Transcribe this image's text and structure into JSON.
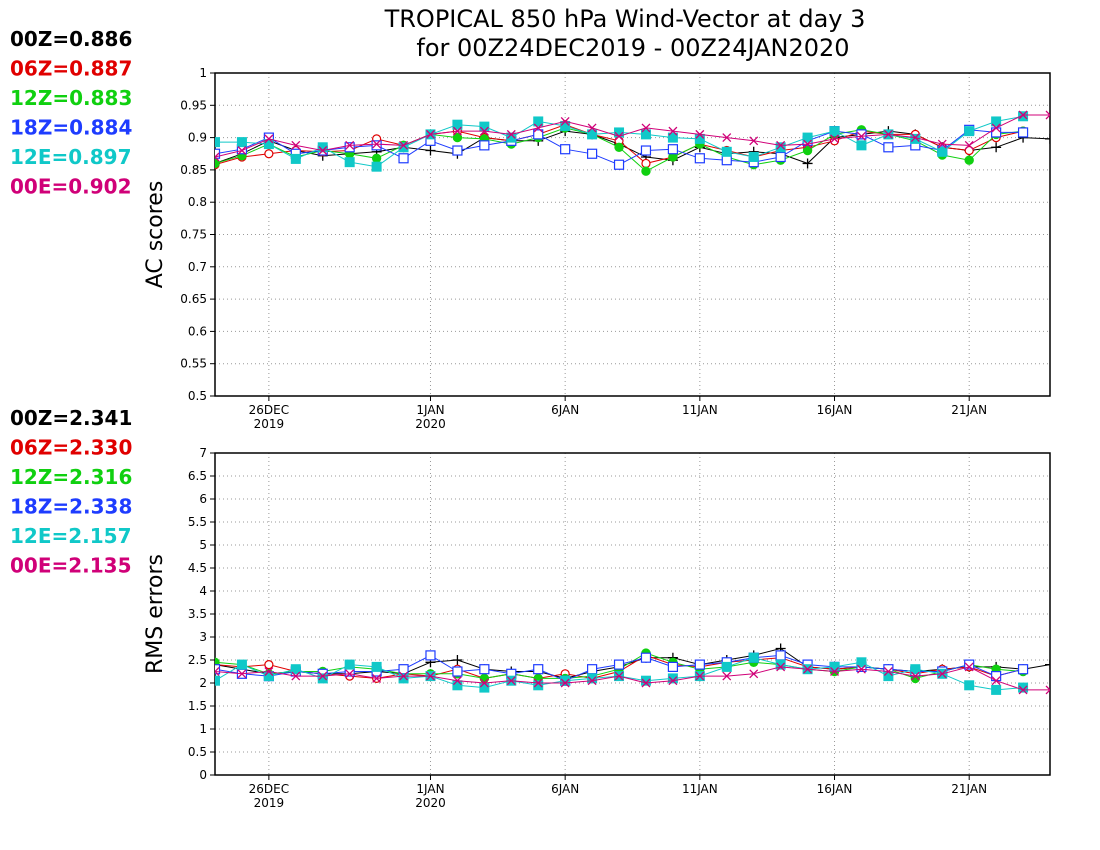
{
  "title_line1": "TROPICAL 850 hPa Wind-Vector at day 3",
  "title_line2": "for 00Z24DEC2019 - 00Z24JAN2020",
  "colors": {
    "00Z": "#000000",
    "06Z": "#e00000",
    "12Z": "#10d010",
    "18Z": "#1e3cff",
    "12E": "#10c8c8",
    "00E": "#d00078"
  },
  "x_ticks": [
    {
      "day": 2,
      "label": "26DEC",
      "sub": "2019"
    },
    {
      "day": 8,
      "label": "1JAN",
      "sub": "2020"
    },
    {
      "day": 13,
      "label": "6JAN",
      "sub": ""
    },
    {
      "day": 18,
      "label": "11JAN",
      "sub": ""
    },
    {
      "day": 23,
      "label": "16JAN",
      "sub": ""
    },
    {
      "day": 28,
      "label": "21JAN",
      "sub": ""
    }
  ],
  "chart_data": [
    {
      "type": "line",
      "id": "ac",
      "ylabel": "AC scores",
      "xlim": [
        0,
        31
      ],
      "ylim": [
        0.5,
        1.0
      ],
      "yticks": [
        "0.5",
        "0.55",
        "0.6",
        "0.65",
        "0.7",
        "0.75",
        "0.8",
        "0.85",
        "0.9",
        "0.95",
        "1"
      ],
      "grid": true,
      "legend": [
        {
          "key": "00Z",
          "text": "00Z=0.886"
        },
        {
          "key": "06Z",
          "text": "06Z=0.887"
        },
        {
          "key": "12Z",
          "text": "12Z=0.883"
        },
        {
          "key": "18Z",
          "text": "18Z=0.884"
        },
        {
          "key": "12E",
          "text": "12E=0.897"
        },
        {
          "key": "00E",
          "text": "00E=0.902"
        }
      ],
      "series": [
        {
          "key": "00Z",
          "marker": "plus",
          "x": [
            0,
            1,
            2,
            3,
            4,
            5,
            6,
            7,
            8,
            9,
            10,
            11,
            12,
            13,
            14,
            15,
            16,
            17,
            18,
            19,
            20,
            21,
            22,
            23,
            24,
            25,
            26,
            27,
            28,
            29,
            30,
            31
          ],
          "values": [
            0.86,
            0.875,
            0.895,
            0.88,
            0.872,
            0.875,
            0.878,
            0.885,
            0.88,
            0.875,
            0.9,
            0.895,
            0.895,
            0.91,
            0.905,
            0.89,
            0.87,
            0.865,
            0.885,
            0.875,
            0.878,
            0.875,
            0.86,
            0.9,
            0.905,
            0.91,
            0.905,
            0.885,
            0.88,
            0.885,
            0.9,
            0.898
          ]
        },
        {
          "key": "06Z",
          "marker": "circle",
          "x": [
            0,
            1,
            2,
            3,
            4,
            5,
            6,
            7,
            8,
            9,
            10,
            11,
            12,
            13,
            14,
            15,
            16,
            17,
            18,
            19,
            20,
            21,
            22,
            23,
            24,
            25,
            26,
            27,
            28,
            29,
            30
          ],
          "values": [
            0.858,
            0.87,
            0.875,
            0.88,
            0.878,
            0.88,
            0.898,
            0.888,
            0.905,
            0.91,
            0.9,
            0.895,
            0.905,
            0.92,
            0.905,
            0.895,
            0.86,
            0.87,
            0.89,
            0.88,
            0.87,
            0.88,
            0.885,
            0.895,
            0.91,
            0.905,
            0.905,
            0.885,
            0.88,
            0.9,
            0.91
          ]
        },
        {
          "key": "12Z",
          "marker": "filled-circle",
          "x": [
            0,
            1,
            2,
            3,
            4,
            5,
            6,
            7,
            8,
            9,
            10,
            11,
            12,
            13,
            14,
            15,
            16,
            17,
            18,
            19,
            20,
            21,
            22,
            23,
            24,
            25,
            26,
            27,
            28,
            29,
            30
          ],
          "values": [
            0.86,
            0.872,
            0.89,
            0.87,
            0.88,
            0.875,
            0.868,
            0.888,
            0.905,
            0.9,
            0.898,
            0.89,
            0.9,
            0.915,
            0.905,
            0.885,
            0.848,
            0.87,
            0.89,
            0.87,
            0.858,
            0.865,
            0.88,
            0.905,
            0.912,
            0.905,
            0.895,
            0.873,
            0.865,
            0.905,
            0.91
          ]
        },
        {
          "key": "18Z",
          "marker": "open-square",
          "x": [
            0,
            1,
            2,
            3,
            4,
            5,
            6,
            7,
            8,
            9,
            10,
            11,
            12,
            13,
            14,
            15,
            16,
            17,
            18,
            19,
            20,
            21,
            22,
            23,
            24,
            25,
            26,
            27,
            28,
            29,
            30
          ],
          "values": [
            0.875,
            0.882,
            0.9,
            0.875,
            0.88,
            0.885,
            0.888,
            0.868,
            0.895,
            0.88,
            0.888,
            0.895,
            0.905,
            0.882,
            0.875,
            0.858,
            0.88,
            0.882,
            0.868,
            0.865,
            0.862,
            0.87,
            0.895,
            0.91,
            0.905,
            0.885,
            0.888,
            0.88,
            0.912,
            0.908,
            0.908
          ]
        },
        {
          "key": "12E",
          "marker": "filled-square",
          "x": [
            0,
            1,
            2,
            3,
            4,
            5,
            6,
            7,
            8,
            9,
            10,
            11,
            12,
            13,
            14,
            15,
            16,
            17,
            18,
            19,
            20,
            21,
            22,
            23,
            24,
            25,
            26,
            27,
            28,
            29,
            30
          ],
          "values": [
            0.893,
            0.893,
            0.89,
            0.867,
            0.885,
            0.862,
            0.855,
            0.885,
            0.905,
            0.92,
            0.917,
            0.9,
            0.925,
            0.918,
            0.905,
            0.908,
            0.905,
            0.9,
            0.898,
            0.878,
            0.87,
            0.885,
            0.9,
            0.91,
            0.888,
            0.905,
            0.898,
            0.878,
            0.91,
            0.925,
            0.933
          ]
        },
        {
          "key": "00E",
          "marker": "x",
          "x": [
            0,
            1,
            2,
            3,
            4,
            5,
            6,
            7,
            8,
            9,
            10,
            11,
            12,
            13,
            14,
            15,
            16,
            17,
            18,
            19,
            20,
            21,
            22,
            23,
            24,
            25,
            26,
            27,
            28,
            29,
            30,
            31
          ],
          "values": [
            0.87,
            0.88,
            0.898,
            0.888,
            0.88,
            0.888,
            0.89,
            0.888,
            0.905,
            0.91,
            0.91,
            0.905,
            0.915,
            0.925,
            0.915,
            0.902,
            0.915,
            0.91,
            0.905,
            0.9,
            0.895,
            0.888,
            0.89,
            0.898,
            0.902,
            0.905,
            0.9,
            0.89,
            0.888,
            0.915,
            0.935,
            0.935
          ]
        }
      ]
    },
    {
      "type": "line",
      "id": "rms",
      "ylabel": "RMS errors",
      "xlim": [
        0,
        31
      ],
      "ylim": [
        0,
        7
      ],
      "yticks": [
        "0",
        "0.5",
        "1",
        "1.5",
        "2",
        "2.5",
        "3",
        "3.5",
        "4",
        "4.5",
        "5",
        "5.5",
        "6",
        "6.5",
        "7"
      ],
      "grid": true,
      "legend": [
        {
          "key": "00Z",
          "text": "00Z=2.341"
        },
        {
          "key": "06Z",
          "text": "06Z=2.330"
        },
        {
          "key": "12Z",
          "text": "12Z=2.316"
        },
        {
          "key": "18Z",
          "text": "18Z=2.338"
        },
        {
          "key": "12E",
          "text": "12E=2.157"
        },
        {
          "key": "00E",
          "text": "00E=2.135"
        }
      ],
      "series": [
        {
          "key": "00Z",
          "marker": "plus",
          "x": [
            0,
            1,
            2,
            3,
            4,
            5,
            6,
            7,
            8,
            9,
            10,
            11,
            12,
            13,
            14,
            15,
            16,
            17,
            18,
            19,
            20,
            21,
            22,
            23,
            24,
            25,
            26,
            27,
            28,
            29,
            30,
            31
          ],
          "values": [
            2.4,
            2.3,
            2.2,
            2.25,
            2.2,
            2.2,
            2.25,
            2.2,
            2.45,
            2.5,
            2.3,
            2.25,
            2.25,
            2.1,
            2.25,
            2.35,
            2.55,
            2.55,
            2.4,
            2.5,
            2.6,
            2.75,
            2.35,
            2.3,
            2.35,
            2.3,
            2.25,
            2.3,
            2.35,
            2.35,
            2.3,
            2.4
          ]
        },
        {
          "key": "06Z",
          "marker": "circle",
          "x": [
            0,
            1,
            2,
            3,
            4,
            5,
            6,
            7,
            8,
            9,
            10,
            11,
            12,
            13,
            14,
            15,
            16,
            17,
            18,
            19,
            20,
            21,
            22,
            23,
            24,
            25,
            26,
            27,
            28,
            29,
            30
          ],
          "values": [
            2.4,
            2.35,
            2.4,
            2.25,
            2.2,
            2.15,
            2.1,
            2.2,
            2.15,
            2.3,
            2.1,
            2.2,
            2.1,
            2.2,
            2.1,
            2.25,
            2.6,
            2.4,
            2.35,
            2.45,
            2.5,
            2.55,
            2.35,
            2.3,
            2.35,
            2.3,
            2.2,
            2.3,
            2.35,
            2.15,
            2.3
          ]
        },
        {
          "key": "12Z",
          "marker": "filled-circle",
          "x": [
            0,
            1,
            2,
            3,
            4,
            5,
            6,
            7,
            8,
            9,
            10,
            11,
            12,
            13,
            14,
            15,
            16,
            17,
            18,
            19,
            20,
            21,
            22,
            23,
            24,
            25,
            26,
            27,
            28,
            29,
            30
          ],
          "values": [
            2.45,
            2.4,
            2.2,
            2.25,
            2.25,
            2.35,
            2.3,
            2.2,
            2.2,
            2.2,
            2.1,
            2.2,
            2.1,
            2.1,
            2.15,
            2.3,
            2.65,
            2.45,
            2.3,
            2.35,
            2.45,
            2.4,
            2.3,
            2.25,
            2.35,
            2.3,
            2.1,
            2.25,
            2.4,
            2.3,
            2.25
          ]
        },
        {
          "key": "18Z",
          "marker": "open-square",
          "x": [
            0,
            1,
            2,
            3,
            4,
            5,
            6,
            7,
            8,
            9,
            10,
            11,
            12,
            13,
            14,
            15,
            16,
            17,
            18,
            19,
            20,
            21,
            22,
            23,
            24,
            25,
            26,
            27,
            28,
            29,
            30
          ],
          "values": [
            2.3,
            2.2,
            2.15,
            2.25,
            2.2,
            2.25,
            2.25,
            2.3,
            2.6,
            2.25,
            2.3,
            2.2,
            2.3,
            2.05,
            2.3,
            2.4,
            2.55,
            2.35,
            2.4,
            2.45,
            2.55,
            2.6,
            2.4,
            2.35,
            2.35,
            2.3,
            2.25,
            2.25,
            2.4,
            2.15,
            2.3
          ]
        },
        {
          "key": "12E",
          "marker": "filled-square",
          "x": [
            0,
            1,
            2,
            3,
            4,
            5,
            6,
            7,
            8,
            9,
            10,
            11,
            12,
            13,
            14,
            15,
            16,
            17,
            18,
            19,
            20,
            21,
            22,
            23,
            24,
            25,
            26,
            27,
            28,
            29,
            30
          ],
          "values": [
            2.05,
            2.4,
            2.15,
            2.3,
            2.1,
            2.4,
            2.35,
            2.1,
            2.15,
            1.95,
            1.9,
            2.05,
            1.95,
            2.05,
            2.1,
            2.15,
            2.05,
            2.1,
            2.15,
            2.35,
            2.55,
            2.4,
            2.3,
            2.35,
            2.45,
            2.15,
            2.3,
            2.2,
            1.95,
            1.85,
            1.9
          ]
        },
        {
          "key": "00E",
          "marker": "x",
          "x": [
            0,
            1,
            2,
            3,
            4,
            5,
            6,
            7,
            8,
            9,
            10,
            11,
            12,
            13,
            14,
            15,
            16,
            17,
            18,
            19,
            20,
            21,
            22,
            23,
            24,
            25,
            26,
            27,
            28,
            29,
            30,
            31
          ],
          "values": [
            2.25,
            2.2,
            2.25,
            2.15,
            2.15,
            2.2,
            2.1,
            2.15,
            2.15,
            2.05,
            2.0,
            2.05,
            2.0,
            2.0,
            2.05,
            2.15,
            2.0,
            2.05,
            2.15,
            2.15,
            2.2,
            2.35,
            2.3,
            2.25,
            2.3,
            2.25,
            2.15,
            2.2,
            2.35,
            2.05,
            1.85,
            1.85
          ]
        }
      ]
    }
  ]
}
